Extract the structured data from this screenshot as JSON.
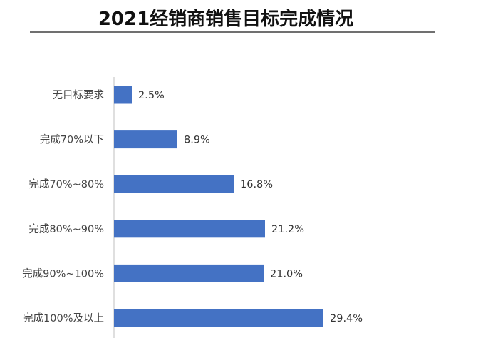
{
  "chart_data": {
    "type": "bar",
    "orientation": "horizontal",
    "title": "2021经销商销售目标完成情况",
    "categories": [
      "无目标要求",
      "完成70%以下",
      "完成70%~80%",
      "完成80%~90%",
      "完成90%~100%",
      "完成100%及以上"
    ],
    "values": [
      2.5,
      8.9,
      16.8,
      21.2,
      21.0,
      29.4
    ],
    "value_labels": [
      "2.5%",
      "8.9%",
      "16.8%",
      "21.2%",
      "21.0%",
      "29.4%"
    ],
    "unit": "%",
    "xlim": [
      0,
      40
    ],
    "grid": false,
    "legend": "none",
    "bar_color": "#4472C4",
    "axis_color": "#BFBFBF",
    "title_rule_color": "#404040"
  }
}
